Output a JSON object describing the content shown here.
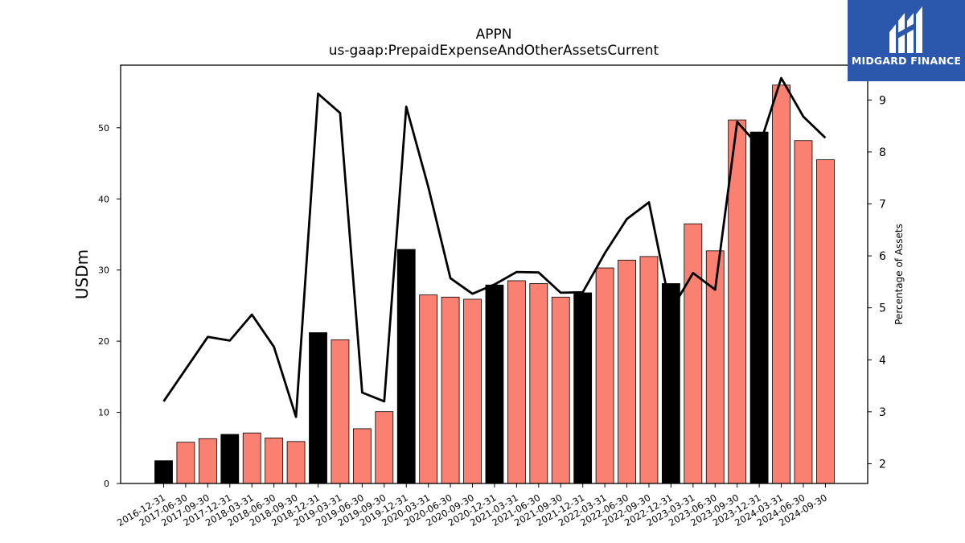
{
  "chart_data": {
    "type": "bar",
    "title": "APPN",
    "subtitle": "us-gaap:PrepaidExpenseAndOtherAssetsCurrent",
    "ylabel": "USDm",
    "y2label": "Percentage of Assets",
    "ylim": [
      0,
      58.8
    ],
    "y2lim": [
      1.62,
      9.67
    ],
    "yticks": [
      0,
      10,
      20,
      30,
      40,
      50
    ],
    "y2ticks": [
      2,
      3,
      4,
      5,
      6,
      7,
      8,
      9
    ],
    "grid": false,
    "categories": [
      "2016-12-31",
      "2017-06-30",
      "2017-09-30",
      "2017-12-31",
      "2018-03-31",
      "2018-06-30",
      "2018-09-30",
      "2018-12-31",
      "2019-03-31",
      "2019-06-30",
      "2019-09-30",
      "2019-12-31",
      "2020-03-31",
      "2020-06-30",
      "2020-09-30",
      "2020-12-31",
      "2021-03-31",
      "2021-06-30",
      "2021-09-30",
      "2021-12-31",
      "2022-03-31",
      "2022-06-30",
      "2022-09-30",
      "2022-12-31",
      "2023-03-31",
      "2023-06-30",
      "2023-09-30",
      "2023-12-31",
      "2024-03-31",
      "2024-06-30",
      "2024-09-30"
    ],
    "series": [
      {
        "kind": "bar",
        "axis": "left",
        "values": [
          3.2,
          5.8,
          6.3,
          6.9,
          7.1,
          6.4,
          5.9,
          21.2,
          20.2,
          7.7,
          10.1,
          32.9,
          26.5,
          26.2,
          25.9,
          27.9,
          28.5,
          28.1,
          26.2,
          26.8,
          30.3,
          31.4,
          31.9,
          28.1,
          36.5,
          32.7,
          51.1,
          49.4,
          56.0,
          48.2,
          45.5
        ],
        "annual_color": "#000000",
        "quarterly_color": "#fa8072",
        "annual_flags": [
          true,
          false,
          false,
          true,
          false,
          false,
          false,
          true,
          false,
          false,
          false,
          true,
          false,
          false,
          false,
          true,
          false,
          false,
          false,
          true,
          false,
          false,
          false,
          true,
          false,
          false,
          false,
          true,
          false,
          false,
          false
        ]
      },
      {
        "kind": "line",
        "axis": "right",
        "color": "#000000",
        "values": [
          3.2,
          3.82,
          4.44,
          4.37,
          4.87,
          4.25,
          2.9,
          9.12,
          8.75,
          3.37,
          3.2,
          8.87,
          7.32,
          5.57,
          5.27,
          5.45,
          5.69,
          5.68,
          5.29,
          5.3,
          6.05,
          6.71,
          7.03,
          4.95,
          5.67,
          5.35,
          8.58,
          8.1,
          9.42,
          8.68,
          8.27
        ]
      }
    ]
  },
  "logo": {
    "text": "MIDGARD FINANCE",
    "background": "#2b58ad"
  }
}
